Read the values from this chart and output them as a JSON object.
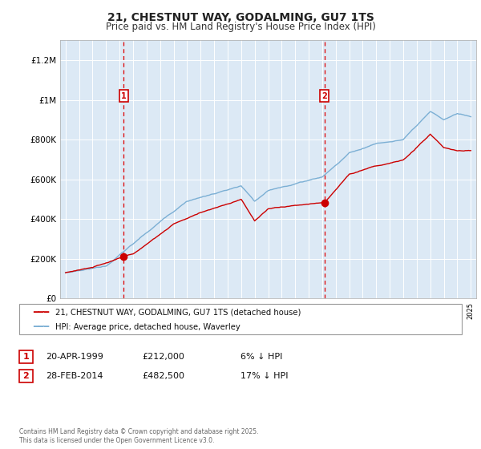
{
  "title": "21, CHESTNUT WAY, GODALMING, GU7 1TS",
  "subtitle": "Price paid vs. HM Land Registry's House Price Index (HPI)",
  "ylabel_ticks": [
    "£0",
    "£200K",
    "£400K",
    "£600K",
    "£800K",
    "£1M",
    "£1.2M"
  ],
  "ytick_values": [
    0,
    200000,
    400000,
    600000,
    800000,
    1000000,
    1200000
  ],
  "ylim": [
    0,
    1300000
  ],
  "transaction1_year": 1999.31,
  "transaction1_price": 212000,
  "transaction2_year": 2014.16,
  "transaction2_price": 482500,
  "red_line_color": "#cc0000",
  "blue_line_color": "#7bafd4",
  "dashed_line_color": "#dd0000",
  "marker_box_color": "#cc0000",
  "plot_bg_color": "#dce9f5",
  "grid_color": "#ffffff",
  "fig_bg_color": "#ffffff",
  "legend_label_red": "21, CHESTNUT WAY, GODALMING, GU7 1TS (detached house)",
  "legend_label_blue": "HPI: Average price, detached house, Waverley",
  "trans1_date": "20-APR-1999",
  "trans1_price_str": "£212,000",
  "trans1_note": "6% ↓ HPI",
  "trans2_date": "28-FEB-2014",
  "trans2_price_str": "£482,500",
  "trans2_note": "17% ↓ HPI",
  "footer": "Contains HM Land Registry data © Crown copyright and database right 2025.\nThis data is licensed under the Open Government Licence v3.0.",
  "title_fontsize": 10,
  "subtitle_fontsize": 8.5
}
